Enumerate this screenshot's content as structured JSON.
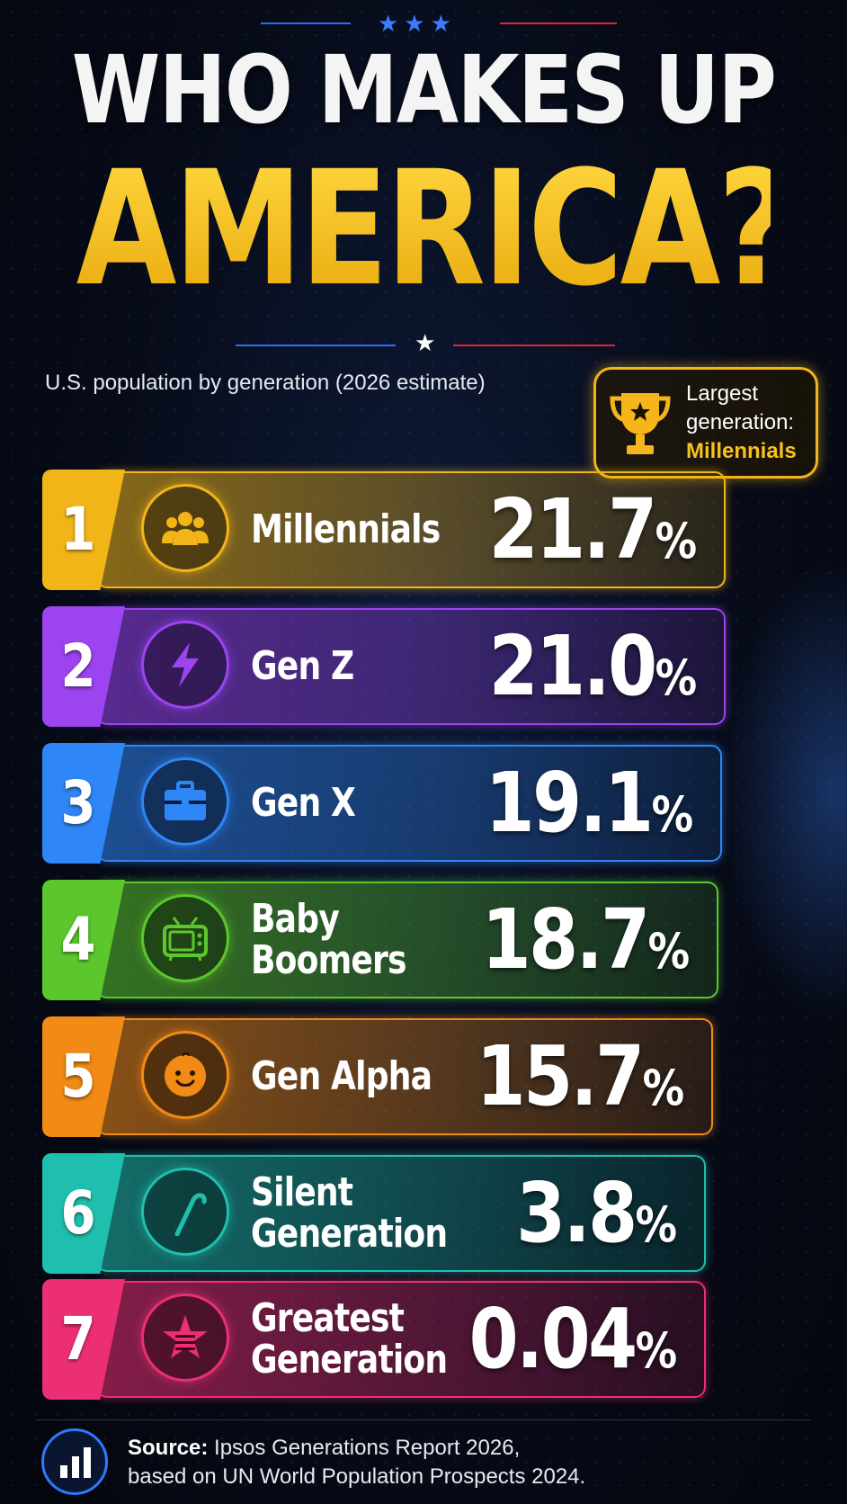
{
  "header": {
    "title_line1": "WHO MAKES UP",
    "title_line2": "AMERICA?",
    "subtitle": "U.S. population by generation (2026 estimate)"
  },
  "badge": {
    "line1": "Largest",
    "line2": "generation:",
    "highlight": "Millennials",
    "icon": "trophy-icon"
  },
  "chart_data": {
    "type": "table",
    "title": "WHO MAKES UP AMERICA?",
    "subtitle": "U.S. population by generation (2026 estimate)",
    "unit": "%",
    "rows": [
      {
        "rank": "1",
        "name": "Millennials",
        "value": 21.7,
        "label": "21.7",
        "color": "#f2b518",
        "icon": "people-group-icon"
      },
      {
        "rank": "2",
        "name": "Gen Z",
        "value": 21.0,
        "label": "21.0",
        "color": "#9b44f0",
        "icon": "lightning-bolt-icon"
      },
      {
        "rank": "3",
        "name": "Gen X",
        "value": 19.1,
        "label": "19.1",
        "color": "#2f86f6",
        "icon": "briefcase-icon"
      },
      {
        "rank": "4",
        "name": "Baby Boomers",
        "value": 18.7,
        "label": "18.7",
        "color": "#5cc72c",
        "icon": "television-icon"
      },
      {
        "rank": "5",
        "name": "Gen Alpha",
        "value": 15.7,
        "label": "15.7",
        "color": "#f28a16",
        "icon": "baby-face-icon"
      },
      {
        "rank": "6",
        "name": "Silent\nGeneration",
        "value": 3.8,
        "label": "3.8",
        "color": "#1fbfae",
        "icon": "cane-icon"
      },
      {
        "rank": "7",
        "name": "Greatest\nGeneration",
        "value": 0.04,
        "label": "0.04",
        "color": "#ec2f74",
        "icon": "flag-star-icon"
      }
    ]
  },
  "footer": {
    "source_label": "Source:",
    "source_text": "Ipsos Generations Report 2026,",
    "source_line2": "based on UN World Population Prospects 2024.",
    "icon": "bar-chart-icon"
  }
}
